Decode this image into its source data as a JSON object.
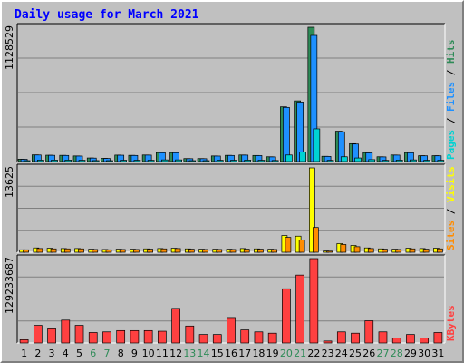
{
  "chart_data": [
    {
      "type": "bar",
      "title": "Daily usage for March 2021",
      "panel": "hits-files-pages",
      "ymax_label": "1128529",
      "ylim": [
        0,
        1128529
      ],
      "side_label": {
        "pages": "Pages",
        "files": "Files",
        "hits": "Hits",
        "sep": " / "
      },
      "categories": [
        "1",
        "2",
        "3",
        "4",
        "5",
        "6",
        "7",
        "8",
        "9",
        "10",
        "11",
        "12",
        "13",
        "14",
        "15",
        "16",
        "17",
        "18",
        "19",
        "20",
        "21",
        "22",
        "23",
        "24",
        "25",
        "26",
        "27",
        "28",
        "29",
        "30",
        "31"
      ],
      "weekend_days": [
        "6",
        "7",
        "13",
        "14",
        "20",
        "21",
        "27",
        "28"
      ],
      "series": [
        {
          "name": "Hits",
          "color": "#2e8b57",
          "values": [
            20000,
            56000,
            53000,
            52000,
            47000,
            30000,
            27000,
            54000,
            52000,
            55000,
            75000,
            75000,
            25000,
            25000,
            47000,
            52000,
            55000,
            51000,
            40000,
            460000,
            510000,
            1128529,
            44000,
            255000,
            150000,
            75000,
            40000,
            55000,
            75000,
            49000,
            49000
          ]
        },
        {
          "name": "Files",
          "color": "#1e90ff",
          "values": [
            19000,
            55000,
            52000,
            51000,
            46000,
            29000,
            26000,
            53000,
            51000,
            54000,
            74000,
            74000,
            24000,
            24000,
            46000,
            51000,
            54000,
            50000,
            39000,
            455000,
            500000,
            1060000,
            43000,
            250000,
            147000,
            73000,
            39000,
            54000,
            74000,
            48000,
            48000
          ]
        },
        {
          "name": "Pages",
          "color": "#00d2d2",
          "values": [
            6000,
            12000,
            12000,
            12000,
            11000,
            8000,
            7000,
            11000,
            11000,
            11000,
            14000,
            14000,
            6000,
            6000,
            11000,
            11000,
            12000,
            11000,
            9000,
            55000,
            80000,
            275000,
            10000,
            40000,
            30000,
            16000,
            10000,
            12000,
            14000,
            11000,
            11000
          ]
        }
      ]
    },
    {
      "type": "bar",
      "panel": "visits-sites",
      "ymax_label": "13625",
      "ylim": [
        0,
        13625
      ],
      "side_label": {
        "sites": "Sites",
        "visits": "Visits",
        "sep": " / "
      },
      "categories": [
        "1",
        "2",
        "3",
        "4",
        "5",
        "6",
        "7",
        "8",
        "9",
        "10",
        "11",
        "12",
        "13",
        "14",
        "15",
        "16",
        "17",
        "18",
        "19",
        "20",
        "21",
        "22",
        "23",
        "24",
        "25",
        "26",
        "27",
        "28",
        "29",
        "30",
        "31"
      ],
      "series": [
        {
          "name": "Visits",
          "color": "#ffff00",
          "values": [
            400,
            700,
            650,
            600,
            600,
            500,
            450,
            500,
            500,
            550,
            600,
            650,
            550,
            500,
            500,
            500,
            600,
            550,
            500,
            2700,
            2600,
            13625,
            200,
            1400,
            1100,
            700,
            550,
            500,
            650,
            600,
            650
          ]
        },
        {
          "name": "Sites",
          "color": "#ff8c00",
          "values": [
            400,
            600,
            550,
            550,
            550,
            450,
            400,
            450,
            450,
            500,
            550,
            600,
            500,
            450,
            450,
            450,
            500,
            500,
            450,
            2400,
            2000,
            4000,
            180,
            1250,
            900,
            600,
            500,
            450,
            550,
            500,
            550
          ]
        }
      ]
    },
    {
      "type": "bar",
      "panel": "kbytes",
      "ymax_label": "129233687",
      "ylim": [
        0,
        129233687
      ],
      "side_label": {
        "kbytes": "KBytes"
      },
      "categories": [
        "1",
        "2",
        "3",
        "4",
        "5",
        "6",
        "7",
        "8",
        "9",
        "10",
        "11",
        "12",
        "13",
        "14",
        "15",
        "16",
        "17",
        "18",
        "19",
        "20",
        "21",
        "22",
        "23",
        "24",
        "25",
        "26",
        "27",
        "28",
        "29",
        "30",
        "31"
      ],
      "series": [
        {
          "name": "KBytes",
          "color": "#ff4040",
          "values": [
            5000000,
            27000000,
            23000000,
            35000000,
            27000000,
            16000000,
            17000000,
            19000000,
            19000000,
            19000000,
            18000000,
            53000000,
            26000000,
            13000000,
            13000000,
            39000000,
            20000000,
            17000000,
            15000000,
            83000000,
            104000000,
            129233687,
            3000000,
            17000000,
            15000000,
            34000000,
            17000000,
            7500000,
            13000000,
            7500000,
            16000000
          ]
        }
      ]
    }
  ]
}
